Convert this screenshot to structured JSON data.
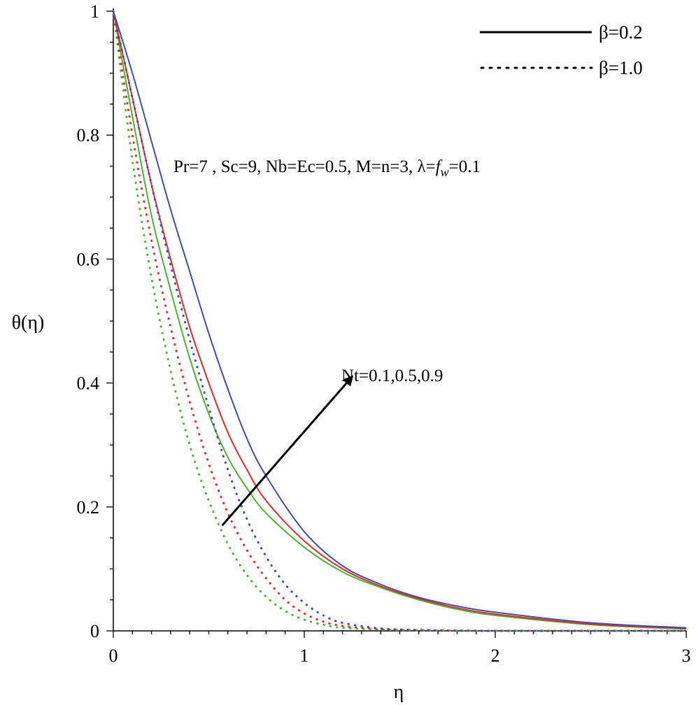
{
  "chart_data": {
    "type": "line",
    "xlabel": "η",
    "ylabel": "θ(η)",
    "xlim": [
      0,
      3
    ],
    "ylim": [
      0,
      1
    ],
    "x_ticks": [
      "0",
      "1",
      "2",
      "3"
    ],
    "y_ticks": [
      "0",
      "0.2",
      "0.4",
      "0.6",
      "0.8",
      "1"
    ],
    "legend": {
      "placement": "top-right",
      "entries": [
        {
          "label": "β=0.2",
          "style": "solid"
        },
        {
          "label": "β=1.0",
          "style": "dotted"
        }
      ]
    },
    "annotations": {
      "params": {
        "prefix": "Pr=7 , Sc=9, Nb=Ec=0.5, M=n=3, λ=",
        "f": "f",
        "sub": "w",
        "suffix": "=0.1"
      },
      "arrow_label": "Nt=0.1,0.5,0.9",
      "arrow_from": [
        0.57,
        0.17
      ],
      "arrow_to": [
        1.25,
        0.41
      ]
    },
    "series": [
      {
        "beta": "β=0.2",
        "Nt": 0.1,
        "style": "solid",
        "color": "#4bb52e",
        "x": [
          0,
          0.1,
          0.2,
          0.3,
          0.4,
          0.5,
          0.6,
          0.7,
          0.8,
          1.0,
          1.2,
          1.4,
          1.6,
          1.8,
          2.0,
          2.5,
          3.0
        ],
        "y": [
          1,
          0.83,
          0.67,
          0.55,
          0.44,
          0.35,
          0.28,
          0.23,
          0.19,
          0.135,
          0.095,
          0.07,
          0.05,
          0.035,
          0.025,
          0.01,
          0.003
        ]
      },
      {
        "beta": "β=0.2",
        "Nt": 0.5,
        "style": "solid",
        "color": "#e82a2a",
        "x": [
          0,
          0.1,
          0.2,
          0.3,
          0.4,
          0.5,
          0.6,
          0.7,
          0.8,
          1.0,
          1.2,
          1.4,
          1.6,
          1.8,
          2.0,
          2.5,
          3.0
        ],
        "y": [
          1,
          0.86,
          0.72,
          0.6,
          0.49,
          0.4,
          0.32,
          0.26,
          0.21,
          0.145,
          0.1,
          0.072,
          0.052,
          0.037,
          0.027,
          0.011,
          0.004
        ]
      },
      {
        "beta": "β=0.2",
        "Nt": 0.9,
        "style": "solid",
        "color": "#3a4fb0",
        "x": [
          0,
          0.1,
          0.2,
          0.3,
          0.4,
          0.5,
          0.6,
          0.7,
          0.8,
          1.0,
          1.2,
          1.4,
          1.6,
          1.8,
          2.0,
          2.5,
          3.0
        ],
        "y": [
          1,
          0.9,
          0.79,
          0.68,
          0.58,
          0.48,
          0.39,
          0.31,
          0.25,
          0.16,
          0.105,
          0.075,
          0.054,
          0.04,
          0.03,
          0.013,
          0.005
        ]
      },
      {
        "beta": "β=1.0",
        "Nt": 0.1,
        "style": "dotted",
        "color": "#4bb52e",
        "x": [
          0,
          0.1,
          0.2,
          0.3,
          0.4,
          0.5,
          0.6,
          0.7,
          0.8,
          0.9,
          1.0,
          1.1,
          1.2,
          1.4,
          1.6,
          2.0,
          3.0
        ],
        "y": [
          1,
          0.76,
          0.57,
          0.42,
          0.3,
          0.21,
          0.14,
          0.09,
          0.055,
          0.032,
          0.018,
          0.01,
          0.005,
          0.002,
          0.001,
          0,
          0
        ]
      },
      {
        "beta": "β=1.0",
        "Nt": 0.5,
        "style": "dotted",
        "color": "#e82a2a",
        "x": [
          0,
          0.1,
          0.2,
          0.3,
          0.4,
          0.5,
          0.6,
          0.7,
          0.8,
          0.9,
          1.0,
          1.1,
          1.2,
          1.4,
          1.6,
          2.0,
          3.0
        ],
        "y": [
          1,
          0.8,
          0.63,
          0.49,
          0.37,
          0.27,
          0.19,
          0.13,
          0.085,
          0.05,
          0.028,
          0.015,
          0.008,
          0.003,
          0.001,
          0,
          0
        ]
      },
      {
        "beta": "β=1.0",
        "Nt": 0.9,
        "style": "dotted",
        "color": "#3a4fb0",
        "x": [
          0,
          0.1,
          0.2,
          0.3,
          0.4,
          0.5,
          0.6,
          0.7,
          0.8,
          0.9,
          1.0,
          1.1,
          1.2,
          1.4,
          1.6,
          2.0,
          3.0
        ],
        "y": [
          1,
          0.86,
          0.72,
          0.59,
          0.47,
          0.36,
          0.26,
          0.18,
          0.12,
          0.075,
          0.045,
          0.025,
          0.013,
          0.004,
          0.0015,
          0,
          0
        ]
      }
    ]
  }
}
